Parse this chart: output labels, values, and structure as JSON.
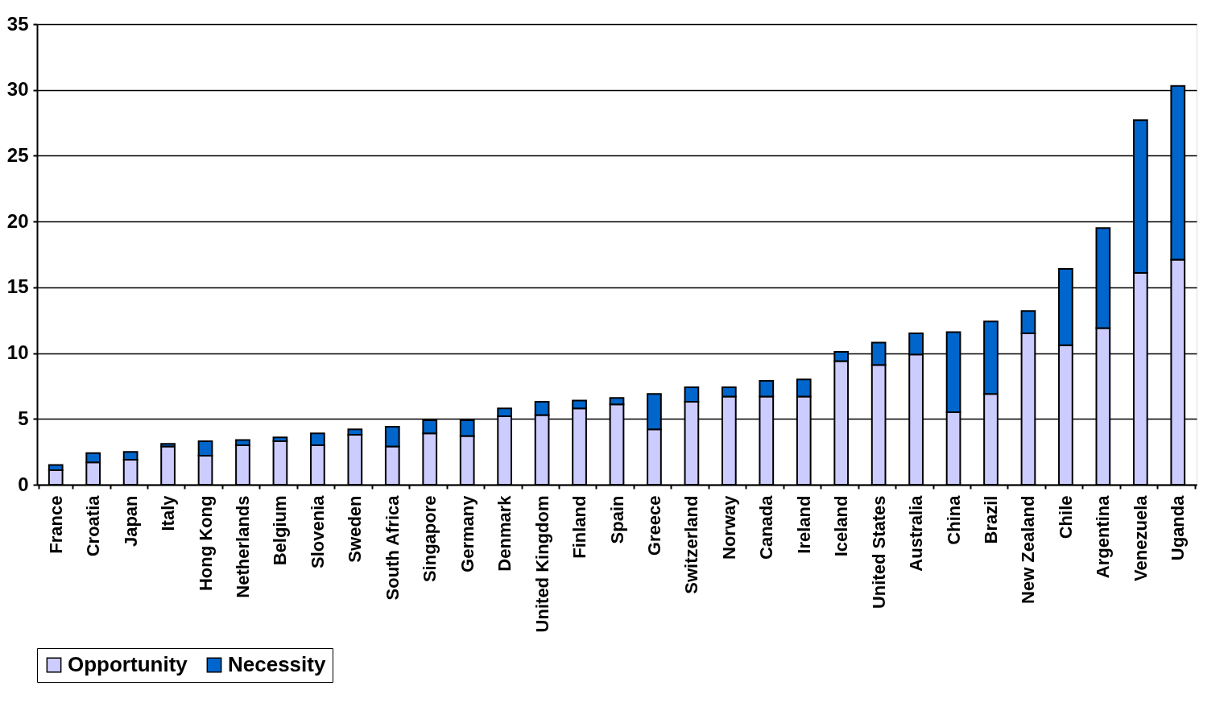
{
  "chart_data": {
    "type": "bar",
    "stacked": true,
    "categories": [
      "France",
      "Croatia",
      "Japan",
      "Italy",
      "Hong Kong",
      "Netherlands",
      "Belgium",
      "Slovenia",
      "Sweden",
      "South Africa",
      "Singapore",
      "Germany",
      "Denmark",
      "United Kingdom",
      "Finland",
      "Spain",
      "Greece",
      "Switzerland",
      "Norway",
      "Canada",
      "Ireland",
      "Iceland",
      "United States",
      "Australia",
      "China",
      "Brazil",
      "New Zealand",
      "Chile",
      "Argentina",
      "Venezuela",
      "Uganda"
    ],
    "series": [
      {
        "name": "Opportunity",
        "color": "#ccccff",
        "values": [
          1.1,
          1.7,
          1.9,
          2.9,
          2.2,
          3.0,
          3.3,
          3.0,
          3.8,
          2.9,
          3.9,
          3.7,
          5.2,
          5.3,
          5.8,
          6.1,
          4.2,
          6.3,
          6.7,
          6.7,
          6.7,
          9.4,
          9.1,
          9.9,
          5.5,
          6.9,
          11.5,
          10.6,
          11.9,
          16.1,
          17.1
        ]
      },
      {
        "name": "Necessity",
        "color": "#0066cc",
        "values": [
          0.4,
          0.7,
          0.6,
          0.2,
          1.1,
          0.4,
          0.3,
          0.9,
          0.4,
          1.5,
          1.0,
          1.2,
          0.6,
          1.0,
          0.6,
          0.5,
          2.7,
          1.1,
          0.7,
          1.2,
          1.3,
          0.7,
          1.7,
          1.6,
          6.1,
          5.5,
          1.7,
          5.8,
          7.6,
          11.6,
          13.2
        ]
      }
    ],
    "ylim": [
      0,
      35
    ],
    "yticks": [
      0,
      5,
      10,
      15,
      20,
      25,
      30,
      35
    ],
    "grid": "y",
    "legend": "bottom"
  }
}
